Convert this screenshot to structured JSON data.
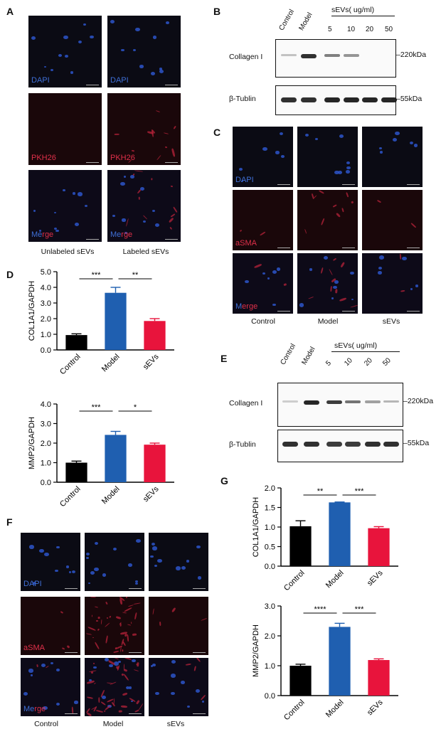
{
  "panels": {
    "a": "A",
    "b": "B",
    "c": "C",
    "d": "D",
    "e": "E",
    "f": "F",
    "g": "G"
  },
  "panel_a": {
    "channels": [
      "DAPI",
      "PKH26",
      "Merge"
    ],
    "merge_first": "Me",
    "merge_rest": "rge",
    "captions": [
      "Unlabeled sEVs",
      "Labeled sEVs"
    ]
  },
  "panel_b": {
    "lanes_left": [
      "Control",
      "Model"
    ],
    "sevs_header": "sEVs( ug/ml)",
    "doses": [
      "5",
      "10",
      "20",
      "50"
    ],
    "row1_label": "Collagen I",
    "row1_weight": "220kDa",
    "row2_label": "β-Tublin",
    "row2_weight": "55kDa",
    "row1_intensity": [
      0.25,
      0.9,
      0.55,
      0.45,
      0.0,
      0.0
    ],
    "row2_intensity": [
      0.9,
      0.9,
      0.95,
      0.95,
      0.95,
      0.95
    ]
  },
  "panel_c": {
    "channels": [
      "DAPI",
      "aSMA",
      "Merge"
    ],
    "merge_first": "M",
    "merge_rest": "erge",
    "columns": [
      "Control",
      "Model",
      "sEVs"
    ]
  },
  "panel_e": {
    "lanes_left": [
      "Control",
      "Model"
    ],
    "sevs_header": "sEVs( ug/ml)",
    "doses": [
      "5",
      "10",
      "20",
      "50"
    ],
    "row1_label": "Collagen I",
    "row1_weight": "220kDa",
    "row2_label": "β-Tublin",
    "row2_weight": "55kDa",
    "row1_intensity": [
      0.2,
      0.95,
      0.85,
      0.6,
      0.4,
      0.3
    ],
    "row2_intensity": [
      0.9,
      0.9,
      0.85,
      0.85,
      0.9,
      0.9
    ]
  },
  "panel_f": {
    "channels": [
      "DAPI",
      "aSMA",
      "Merge"
    ],
    "merge_first": "Me",
    "merge_rest": "rge",
    "columns": [
      "Control",
      "Model",
      "sEVs"
    ]
  },
  "colors": {
    "control": "#000000",
    "model": "#1f5fb0",
    "sevs": "#e8143c"
  },
  "chart_data": [
    {
      "id": "D-top",
      "type": "bar",
      "categories": [
        "Control",
        "Model",
        "sEVs"
      ],
      "values": [
        0.95,
        3.65,
        1.85
      ],
      "errors": [
        0.08,
        0.35,
        0.15
      ],
      "ylabel": "COL1A1/GAPDH",
      "ylim": [
        0,
        5
      ],
      "yticks": [
        "0.0",
        "1.0",
        "2.0",
        "3.0",
        "4.0",
        "5.0"
      ],
      "significance": [
        {
          "from": 0,
          "to": 1,
          "label": "***"
        },
        {
          "from": 1,
          "to": 2,
          "label": "**"
        }
      ]
    },
    {
      "id": "D-bottom",
      "type": "bar",
      "categories": [
        "Control",
        "Model",
        "sEVs"
      ],
      "values": [
        1.0,
        2.42,
        1.92
      ],
      "errors": [
        0.08,
        0.18,
        0.08
      ],
      "ylabel": "MMP2/GAPDH",
      "ylim": [
        0,
        4
      ],
      "yticks": [
        "0.0",
        "1.0",
        "2.0",
        "3.0",
        "4.0"
      ],
      "significance": [
        {
          "from": 0,
          "to": 1,
          "label": "***"
        },
        {
          "from": 1,
          "to": 2,
          "label": "*"
        }
      ]
    },
    {
      "id": "G-top",
      "type": "bar",
      "categories": [
        "Control",
        "Model",
        "sEVs"
      ],
      "values": [
        1.02,
        1.63,
        0.97
      ],
      "errors": [
        0.14,
        0.01,
        0.04
      ],
      "ylabel": "COL1A1/GAPDH",
      "ylim": [
        0,
        2
      ],
      "yticks": [
        "0.0",
        "0.5",
        "1.0",
        "1.5",
        "2.0"
      ],
      "significance": [
        {
          "from": 0,
          "to": 1,
          "label": "**"
        },
        {
          "from": 1,
          "to": 2,
          "label": "***"
        }
      ]
    },
    {
      "id": "G-bottom",
      "type": "bar",
      "categories": [
        "Control",
        "Model",
        "sEVs"
      ],
      "values": [
        1.0,
        2.3,
        1.19
      ],
      "errors": [
        0.05,
        0.12,
        0.04
      ],
      "ylabel": "MMP2/GAPDH",
      "ylim": [
        0,
        3
      ],
      "yticks": [
        "0.0",
        "1.0",
        "2.0",
        "3.0"
      ],
      "significance": [
        {
          "from": 0,
          "to": 1,
          "label": "****"
        },
        {
          "from": 1,
          "to": 2,
          "label": "***"
        }
      ]
    }
  ]
}
